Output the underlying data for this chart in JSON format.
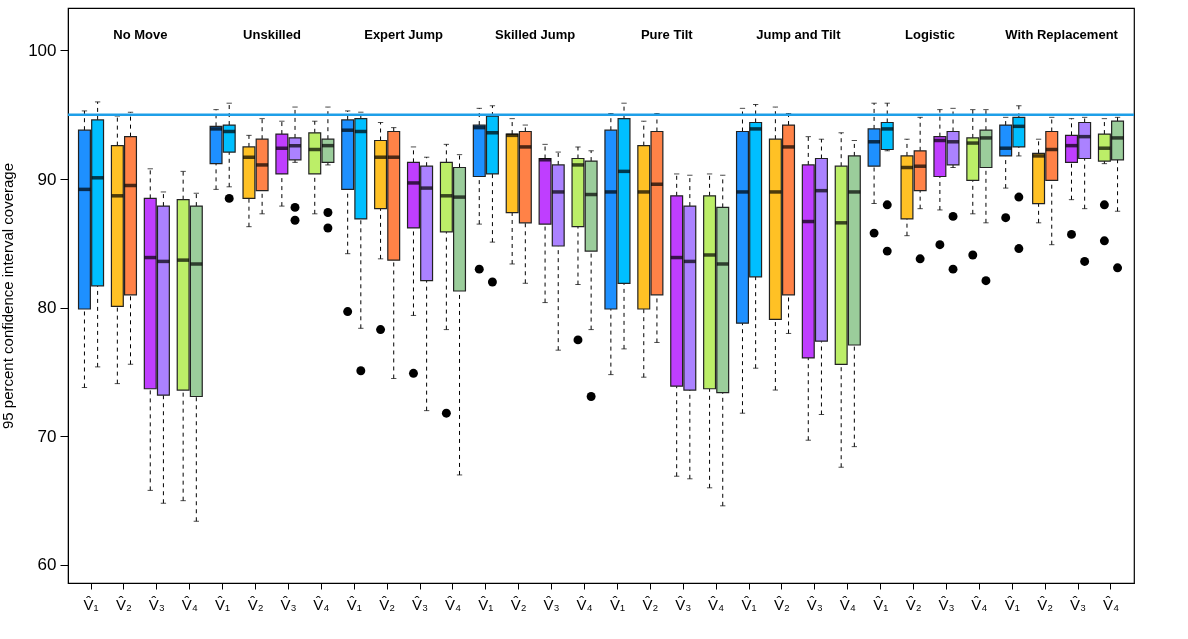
{
  "chart_data": {
    "type": "box",
    "ylabel": "95 percent confidence interval coverage",
    "categories": [
      "V̂₁",
      "V̂₂",
      "V̂₃",
      "V̂₄",
      "V̂₁",
      "V̂₂",
      "V̂₃",
      "V̂₄",
      "V̂₁",
      "V̂₂",
      "V̂₃",
      "V̂₄",
      "V̂₁",
      "V̂₂",
      "V̂₃",
      "V̂₄",
      "V̂₁",
      "V̂₂",
      "V̂₃",
      "V̂₄",
      "V̂₁",
      "V̂₂",
      "V̂₃",
      "V̂₄",
      "V̂₁",
      "V̂₂",
      "V̂₃",
      "V̂₄",
      "V̂₁",
      "V̂₂",
      "V̂₃",
      "V̂₄"
    ],
    "annotations": [
      "No Move",
      "Unskilled",
      "Expert Jump",
      "Skilled Jump",
      "Pure Tilt",
      "Jump and Tilt",
      "Logistic",
      "With Replacement"
    ],
    "ylim": [
      58.6,
      103.3
    ],
    "yticks": [
      60,
      70,
      80,
      90,
      100
    ],
    "grid": false,
    "ref_lines": [
      {
        "axis": "y",
        "value": 95,
        "color": "#1e9fe8"
      }
    ],
    "series": [
      {
        "colors": [
          "#1e90ff",
          "#ffc125",
          "#bf3eff",
          "#bcee68",
          "#1e90ff",
          "#ffc125",
          "#bf3eff",
          "#bcee68",
          "#1e90ff",
          "#ffc125",
          "#bf3eff",
          "#bcee68",
          "#1e90ff",
          "#ffc125",
          "#bf3eff",
          "#bcee68",
          "#1e90ff",
          "#ffc125",
          "#bf3eff",
          "#bcee68",
          "#1e90ff",
          "#ffc125",
          "#bf3eff",
          "#bcee68",
          "#1e90ff",
          "#ffc125",
          "#bf3eff",
          "#bcee68",
          "#1e90ff",
          "#ffc125",
          "#bf3eff",
          "#bcee68"
        ],
        "boxes": [
          {
            "low": 73.8,
            "q1": 79.9,
            "median": 89.2,
            "q3": 93.8,
            "high": 95.3
          },
          {
            "low": 74.1,
            "q1": 80.1,
            "median": 88.7,
            "q3": 92.6,
            "high": 94.9
          },
          {
            "low": 65.8,
            "q1": 73.7,
            "median": 83.9,
            "q3": 88.5,
            "high": 90.8
          },
          {
            "low": 65.0,
            "q1": 73.6,
            "median": 83.7,
            "q3": 88.4,
            "high": 90.6
          },
          {
            "low": 89.2,
            "q1": 91.2,
            "median": 93.9,
            "q3": 94.1,
            "high": 95.4
          },
          {
            "low": 86.3,
            "q1": 88.5,
            "median": 91.7,
            "q3": 92.5,
            "high": 93.4
          },
          {
            "low": 87.9,
            "q1": 90.4,
            "median": 92.4,
            "q3": 93.5,
            "high": 94.5
          },
          {
            "low": 87.3,
            "q1": 90.4,
            "median": 92.3,
            "q3": 93.6,
            "high": 94.5
          },
          {
            "low": 84.2,
            "q1": 89.2,
            "median": 93.8,
            "q3": 94.6,
            "high": 95.3,
            "outliers": [
              79.7
            ]
          },
          {
            "low": 83.8,
            "q1": 87.7,
            "median": 91.7,
            "q3": 93.0,
            "high": 94.4,
            "outliers": [
              78.3
            ]
          },
          {
            "low": 79.4,
            "q1": 86.2,
            "median": 89.7,
            "q3": 91.3,
            "high": 92.5,
            "outliers": [
              74.9
            ]
          },
          {
            "low": 78.3,
            "q1": 85.9,
            "median": 88.7,
            "q3": 91.3,
            "high": 92.7,
            "outliers": [
              71.8
            ]
          },
          {
            "low": 86.5,
            "q1": 90.2,
            "median": 94.0,
            "q3": 94.2,
            "high": 95.5,
            "outliers": [
              83.0
            ]
          },
          {
            "low": 83.4,
            "q1": 87.4,
            "median": 93.4,
            "q3": 93.5,
            "high": 94.7
          },
          {
            "low": 80.4,
            "q1": 86.5,
            "median": 91.5,
            "q3": 91.6,
            "high": 92.7
          },
          {
            "low": 81.8,
            "q1": 86.3,
            "median": 91.1,
            "q3": 91.6,
            "high": 92.5,
            "outliers": [
              77.5
            ]
          },
          {
            "low": 74.8,
            "q1": 79.9,
            "median": 89.0,
            "q3": 93.8,
            "high": 95.1
          },
          {
            "low": 74.6,
            "q1": 79.9,
            "median": 89.0,
            "q3": 92.6,
            "high": 94.5
          },
          {
            "low": 66.9,
            "q1": 73.9,
            "median": 83.9,
            "q3": 88.7,
            "high": 90.4
          },
          {
            "low": 66.0,
            "q1": 73.7,
            "median": 84.1,
            "q3": 88.7,
            "high": 90.4
          },
          {
            "low": 71.8,
            "q1": 78.8,
            "median": 89.0,
            "q3": 93.7,
            "high": 95.5
          },
          {
            "low": 73.6,
            "q1": 79.1,
            "median": 89.0,
            "q3": 93.1,
            "high": 95.6
          },
          {
            "low": 69.7,
            "q1": 76.1,
            "median": 86.7,
            "q3": 91.1,
            "high": 93.3
          },
          {
            "low": 67.6,
            "q1": 75.6,
            "median": 86.6,
            "q3": 91.0,
            "high": 93.6
          },
          {
            "low": 88.1,
            "q1": 91.0,
            "median": 92.9,
            "q3": 93.9,
            "high": 95.9,
            "outliers": [
              85.8
            ]
          },
          {
            "low": 85.6,
            "q1": 86.9,
            "median": 90.9,
            "q3": 91.8,
            "high": 93.1
          },
          {
            "low": 87.6,
            "q1": 90.2,
            "median": 93.0,
            "q3": 93.3,
            "high": 95.4,
            "outliers": [
              84.9
            ]
          },
          {
            "low": 87.3,
            "q1": 89.9,
            "median": 92.8,
            "q3": 93.2,
            "high": 95.4,
            "outliers": [
              84.1
            ]
          },
          {
            "low": 89.3,
            "q1": 91.8,
            "median": 92.4,
            "q3": 94.2,
            "high": 94.8,
            "outliers": [
              87.0
            ]
          },
          {
            "low": 86.6,
            "q1": 88.1,
            "median": 91.8,
            "q3": 92.0,
            "high": 93.1
          },
          {
            "low": 88.4,
            "q1": 91.3,
            "median": 92.6,
            "q3": 93.4,
            "high": 94.7,
            "outliers": [
              85.7
            ]
          },
          {
            "low": 91.2,
            "q1": 91.4,
            "median": 92.4,
            "q3": 93.5,
            "high": 94.7,
            "outliers": [
              88.0,
              85.2
            ]
          }
        ]
      },
      {
        "colors": [
          "#00bfff",
          "#ff8247",
          "#ab82ff",
          "#9bcd9b",
          "#00bfff",
          "#ff8247",
          "#ab82ff",
          "#9bcd9b",
          "#00bfff",
          "#ff8247",
          "#ab82ff",
          "#9bcd9b",
          "#00bfff",
          "#ff8247",
          "#ab82ff",
          "#9bcd9b",
          "#00bfff",
          "#ff8247",
          "#ab82ff",
          "#9bcd9b",
          "#00bfff",
          "#ff8247",
          "#ab82ff",
          "#9bcd9b",
          "#00bfff",
          "#ff8247",
          "#ab82ff",
          "#9bcd9b",
          "#00bfff",
          "#ff8247",
          "#ab82ff",
          "#9bcd9b"
        ],
        "boxes": [
          {
            "low": 75.4,
            "q1": 81.7,
            "median": 90.1,
            "q3": 94.6,
            "high": 96.0
          },
          {
            "low": 75.6,
            "q1": 81.0,
            "median": 89.5,
            "q3": 93.3,
            "high": 95.2
          },
          {
            "low": 64.8,
            "q1": 73.2,
            "median": 83.6,
            "q3": 87.9,
            "high": 89.0
          },
          {
            "low": 63.4,
            "q1": 73.1,
            "median": 83.4,
            "q3": 87.9,
            "high": 88.9
          },
          {
            "low": 89.4,
            "q1": 92.1,
            "median": 93.7,
            "q3": 94.2,
            "high": 95.9,
            "outliers": [
              88.5
            ]
          },
          {
            "low": 87.3,
            "q1": 89.1,
            "median": 91.1,
            "q3": 93.1,
            "high": 94.7
          },
          {
            "low": 91.3,
            "q1": 91.5,
            "median": 92.6,
            "q3": 93.2,
            "high": 95.6,
            "outliers": [
              87.8,
              86.8
            ]
          },
          {
            "low": 91.1,
            "q1": 91.3,
            "median": 92.6,
            "q3": 93.1,
            "high": 95.6,
            "outliers": [
              87.4,
              86.2
            ]
          },
          {
            "low": 78.4,
            "q1": 86.9,
            "median": 93.7,
            "q3": 94.7,
            "high": 95.2,
            "outliers": [
              75.1
            ]
          },
          {
            "low": 74.5,
            "q1": 83.7,
            "median": 91.7,
            "q3": 93.7,
            "high": 94.0
          },
          {
            "low": 72.0,
            "q1": 82.1,
            "median": 89.3,
            "q3": 91.0,
            "high": 91.7
          },
          {
            "low": 67.0,
            "q1": 81.3,
            "median": 88.6,
            "q3": 90.9,
            "high": 91.9
          },
          {
            "low": 85.1,
            "q1": 90.4,
            "median": 93.6,
            "q3": 94.9,
            "high": 95.7,
            "outliers": [
              82.0
            ]
          },
          {
            "low": 81.9,
            "q1": 86.6,
            "median": 92.5,
            "q3": 93.7,
            "high": 94.2
          },
          {
            "low": 76.7,
            "q1": 84.8,
            "median": 89.0,
            "q3": 91.1,
            "high": 92.1
          },
          {
            "low": 78.3,
            "q1": 84.4,
            "median": 88.8,
            "q3": 91.4,
            "high": 92.2,
            "outliers": [
              73.1
            ]
          },
          {
            "low": 76.8,
            "q1": 81.9,
            "median": 90.6,
            "q3": 94.7,
            "high": 95.9
          },
          {
            "low": 77.3,
            "q1": 81.0,
            "median": 89.6,
            "q3": 93.7,
            "high": 95.1
          },
          {
            "low": 66.7,
            "q1": 73.6,
            "median": 83.6,
            "q3": 87.9,
            "high": 90.3
          },
          {
            "low": 64.6,
            "q1": 73.4,
            "median": 83.4,
            "q3": 87.8,
            "high": 90.3
          },
          {
            "low": 75.3,
            "q1": 82.4,
            "median": 93.9,
            "q3": 94.4,
            "high": 95.8
          },
          {
            "low": 78.0,
            "q1": 81.0,
            "median": 92.5,
            "q3": 94.2,
            "high": 95.1
          },
          {
            "low": 71.7,
            "q1": 77.4,
            "median": 89.1,
            "q3": 91.6,
            "high": 93.1
          },
          {
            "low": 69.2,
            "q1": 77.1,
            "median": 89.0,
            "q3": 91.8,
            "high": 93.0
          },
          {
            "low": 92.2,
            "q1": 92.3,
            "median": 93.9,
            "q3": 94.4,
            "high": 95.9,
            "outliers": [
              88.0,
              84.4
            ]
          },
          {
            "low": 87.7,
            "q1": 89.1,
            "median": 91.0,
            "q3": 92.2,
            "high": 94.8,
            "outliers": [
              83.8
            ]
          },
          {
            "low": 90.9,
            "q1": 91.1,
            "median": 92.9,
            "q3": 93.7,
            "high": 95.5,
            "outliers": [
              87.1,
              83.0
            ]
          },
          {
            "low": 86.6,
            "q1": 90.9,
            "median": 93.2,
            "q3": 93.8,
            "high": 95.4,
            "outliers": [
              82.1
            ]
          },
          {
            "low": 91.8,
            "q1": 92.5,
            "median": 94.1,
            "q3": 94.8,
            "high": 95.7,
            "outliers": [
              88.6,
              84.6
            ]
          },
          {
            "low": 84.9,
            "q1": 89.9,
            "median": 92.3,
            "q3": 93.7,
            "high": 94.8
          },
          {
            "low": 87.7,
            "q1": 91.6,
            "median": 93.3,
            "q3": 94.4,
            "high": 94.8,
            "outliers": [
              83.6
            ]
          },
          {
            "low": 87.5,
            "q1": 91.5,
            "median": 93.2,
            "q3": 94.5,
            "high": 94.8,
            "outliers": [
              83.1
            ]
          }
        ]
      }
    ]
  }
}
